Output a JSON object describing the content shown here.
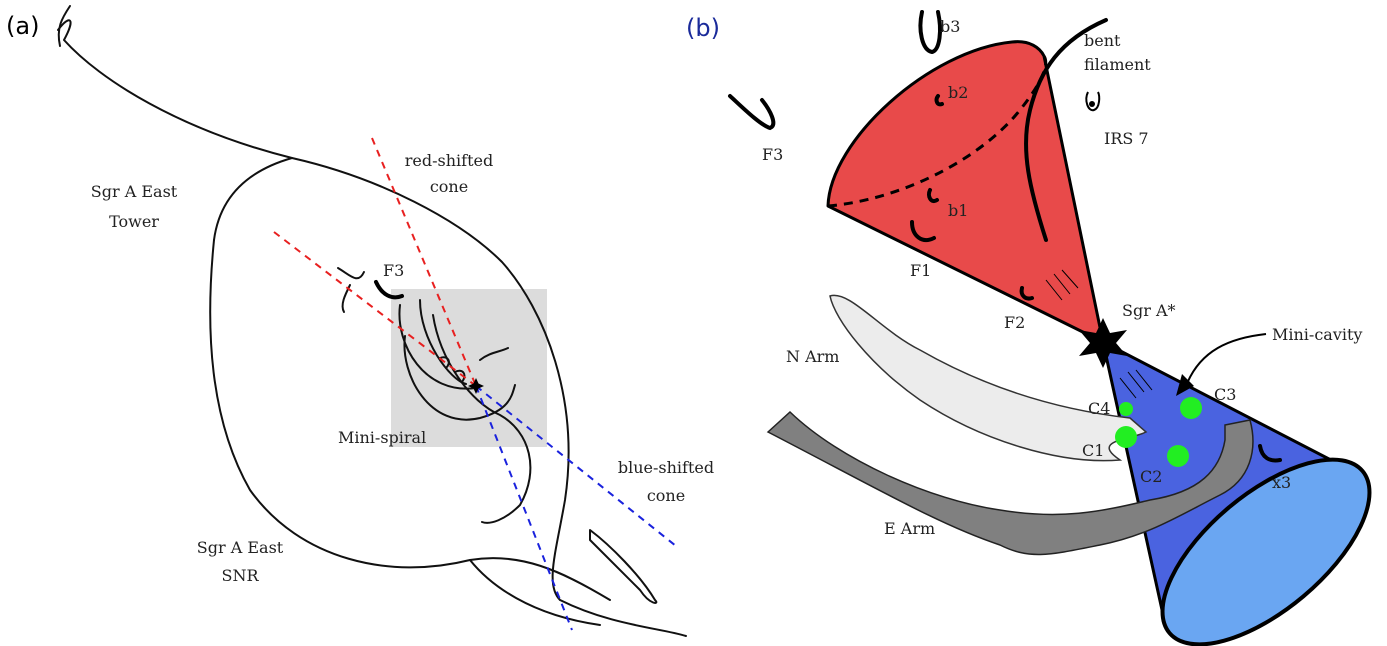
{
  "panel_a": {
    "tag": "(a)",
    "labels": {
      "sgr_a_east_tower": [
        "Sgr A East",
        "Tower"
      ],
      "red_shifted_cone": [
        "red-shifted",
        "cone"
      ],
      "f3": "F3",
      "mini_spiral": "Mini-spiral",
      "blue_shifted_cone": [
        "blue-shifted",
        "cone"
      ],
      "sgr_a_east_snr": [
        "Sgr A East",
        "SNR"
      ]
    }
  },
  "panel_b": {
    "tag": "(b)",
    "labels": {
      "b3": "b3",
      "b2": "b2",
      "b1": "b1",
      "bent_filament": [
        "bent",
        "filament"
      ],
      "irs7": "IRS 7",
      "f3": "F3",
      "f1": "F1",
      "f2": "F2",
      "sgr_a_star": "Sgr A*",
      "mini_cavity": "Mini-cavity",
      "n_arm": "N Arm",
      "e_arm": "E Arm",
      "c1": "C1",
      "c2": "C2",
      "c3": "C3",
      "c4": "C4",
      "x3": "x3"
    }
  },
  "colors": {
    "red_cone": "#e84a4a",
    "blue_cone": "#4a63e0",
    "blue_cone_base": "#6aa6f2",
    "green_clumps": "#22ee22",
    "n_arm_fill": "#ececec",
    "e_arm_fill": "#808080",
    "inset_box": "#dcdcdc",
    "red_dashed": "#e82020",
    "blue_dashed": "#1a22dd",
    "panel_b_tag": "#1a2a9a"
  }
}
